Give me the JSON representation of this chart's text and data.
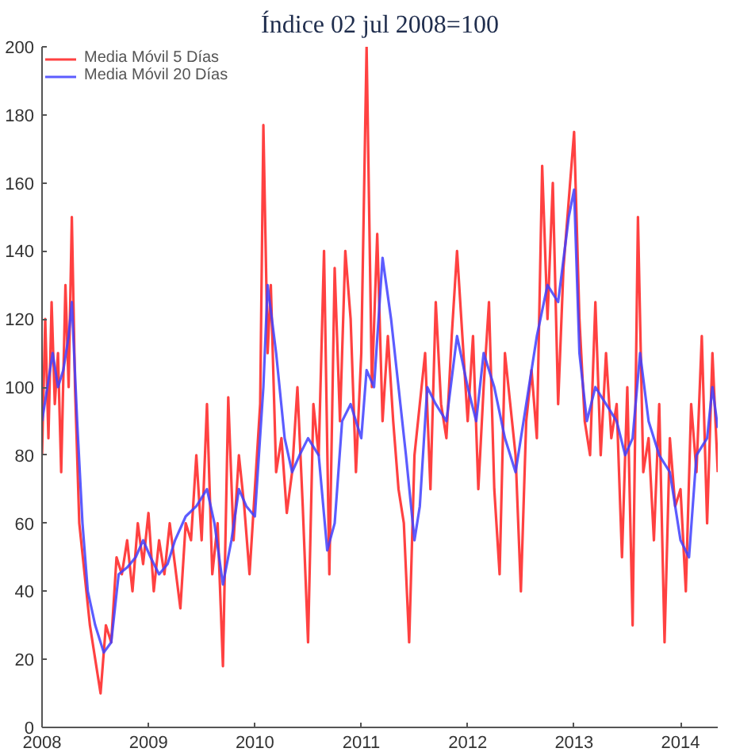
{
  "chart_data": {
    "type": "line",
    "title": "Índice 02 jul 2008=100",
    "xlim": [
      2008,
      2014.35
    ],
    "xticks": [
      2008,
      2009,
      2010,
      2011,
      2012,
      2013,
      2014
    ],
    "ylim": [
      0,
      200
    ],
    "yticks": [
      0,
      20,
      40,
      60,
      80,
      100,
      120,
      140,
      160,
      180,
      200
    ],
    "grid": false,
    "legend": "top left",
    "line_style": "solid",
    "marker": "none",
    "series": [
      {
        "name": "Media Móvil 5 Días",
        "color": "#ff2020",
        "x": [
          2008.0,
          2008.03,
          2008.06,
          2008.09,
          2008.12,
          2008.15,
          2008.18,
          2008.22,
          2008.25,
          2008.28,
          2008.31,
          2008.35,
          2008.4,
          2008.45,
          2008.5,
          2008.55,
          2008.6,
          2008.65,
          2008.7,
          2008.75,
          2008.8,
          2008.85,
          2008.9,
          2008.95,
          2009.0,
          2009.05,
          2009.1,
          2009.15,
          2009.2,
          2009.3,
          2009.35,
          2009.4,
          2009.45,
          2009.5,
          2009.55,
          2009.6,
          2009.65,
          2009.7,
          2009.75,
          2009.8,
          2009.85,
          2009.9,
          2009.95,
          2010.0,
          2010.05,
          2010.08,
          2010.12,
          2010.15,
          2010.2,
          2010.25,
          2010.3,
          2010.35,
          2010.4,
          2010.45,
          2010.5,
          2010.55,
          2010.6,
          2010.65,
          2010.7,
          2010.75,
          2010.8,
          2010.85,
          2010.9,
          2010.95,
          2011.0,
          2011.05,
          2011.1,
          2011.15,
          2011.2,
          2011.25,
          2011.3,
          2011.35,
          2011.4,
          2011.45,
          2011.5,
          2011.55,
          2011.6,
          2011.65,
          2011.7,
          2011.75,
          2011.8,
          2011.85,
          2011.9,
          2011.95,
          2012.0,
          2012.05,
          2012.1,
          2012.15,
          2012.2,
          2012.25,
          2012.3,
          2012.35,
          2012.4,
          2012.45,
          2012.5,
          2012.55,
          2012.6,
          2012.65,
          2012.7,
          2012.75,
          2012.8,
          2012.85,
          2012.9,
          2012.95,
          2013.0,
          2013.05,
          2013.1,
          2013.15,
          2013.2,
          2013.25,
          2013.3,
          2013.35,
          2013.4,
          2013.45,
          2013.5,
          2013.55,
          2013.6,
          2013.65,
          2013.7,
          2013.75,
          2013.8,
          2013.85,
          2013.9,
          2013.95,
          2014.0,
          2014.05,
          2014.1,
          2014.15,
          2014.2,
          2014.25,
          2014.3,
          2014.35
        ],
        "values": [
          80,
          120,
          85,
          125,
          95,
          110,
          75,
          130,
          100,
          150,
          100,
          60,
          45,
          30,
          20,
          10,
          30,
          25,
          50,
          45,
          55,
          40,
          60,
          48,
          63,
          40,
          55,
          45,
          60,
          35,
          60,
          55,
          80,
          55,
          95,
          45,
          60,
          18,
          97,
          55,
          80,
          65,
          45,
          70,
          95,
          177,
          110,
          130,
          75,
          85,
          63,
          75,
          100,
          65,
          25,
          95,
          80,
          140,
          45,
          135,
          90,
          140,
          120,
          75,
          110,
          200,
          100,
          145,
          90,
          115,
          90,
          70,
          60,
          25,
          80,
          95,
          110,
          70,
          125,
          95,
          85,
          115,
          140,
          115,
          90,
          115,
          70,
          100,
          125,
          70,
          45,
          110,
          95,
          80,
          40,
          90,
          105,
          85,
          165,
          120,
          160,
          95,
          135,
          155,
          175,
          120,
          90,
          80,
          125,
          80,
          110,
          85,
          95,
          50,
          100,
          30,
          150,
          75,
          85,
          55,
          95,
          25,
          85,
          65,
          70,
          40,
          95,
          75,
          115,
          60,
          110,
          75
        ]
      },
      {
        "name": "Media Móvil 20 Días",
        "color": "#4040ff",
        "x": [
          2008.0,
          2008.05,
          2008.1,
          2008.15,
          2008.2,
          2008.25,
          2008.28,
          2008.33,
          2008.38,
          2008.43,
          2008.5,
          2008.58,
          2008.65,
          2008.72,
          2008.8,
          2008.88,
          2008.95,
          2009.02,
          2009.1,
          2009.18,
          2009.25,
          2009.35,
          2009.45,
          2009.55,
          2009.62,
          2009.7,
          2009.78,
          2009.85,
          2009.92,
          2010.0,
          2010.08,
          2010.12,
          2010.2,
          2010.28,
          2010.35,
          2010.42,
          2010.5,
          2010.6,
          2010.68,
          2010.75,
          2010.82,
          2010.9,
          2011.0,
          2011.05,
          2011.12,
          2011.2,
          2011.28,
          2011.35,
          2011.42,
          2011.5,
          2011.55,
          2011.62,
          2011.7,
          2011.8,
          2011.9,
          2012.0,
          2012.08,
          2012.15,
          2012.25,
          2012.35,
          2012.45,
          2012.55,
          2012.65,
          2012.75,
          2012.85,
          2012.95,
          2013.0,
          2013.05,
          2013.12,
          2013.2,
          2013.3,
          2013.4,
          2013.48,
          2013.55,
          2013.62,
          2013.7,
          2013.8,
          2013.9,
          2014.0,
          2014.08,
          2014.15,
          2014.25,
          2014.3,
          2014.35
        ],
        "values": [
          90,
          100,
          110,
          100,
          105,
          115,
          125,
          90,
          60,
          40,
          30,
          22,
          25,
          45,
          47,
          50,
          55,
          50,
          45,
          48,
          55,
          62,
          65,
          70,
          60,
          42,
          55,
          70,
          65,
          62,
          100,
          130,
          110,
          85,
          75,
          80,
          85,
          80,
          52,
          60,
          90,
          95,
          85,
          105,
          100,
          138,
          120,
          100,
          80,
          55,
          65,
          100,
          95,
          90,
          115,
          100,
          90,
          110,
          100,
          85,
          75,
          95,
          115,
          130,
          125,
          150,
          158,
          110,
          90,
          100,
          95,
          90,
          80,
          85,
          110,
          90,
          80,
          75,
          55,
          50,
          80,
          85,
          100,
          88
        ]
      }
    ]
  }
}
